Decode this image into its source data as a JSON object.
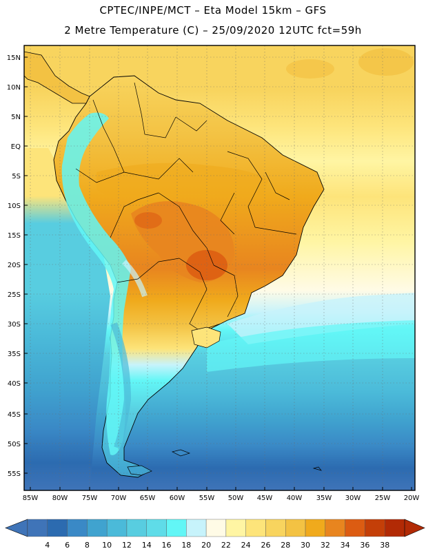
{
  "header": {
    "line1": "CPTEC/INPE/MCT –  Eta Model 15km – GFS",
    "line2": "2 Metre Temperature (C) – 25/09/2020 12UTC fct=59h"
  },
  "axes": {
    "lat_labels": [
      "15N",
      "10N",
      "5N",
      "EQ",
      "5S",
      "10S",
      "15S",
      "20S",
      "25S",
      "30S",
      "35S",
      "40S",
      "45S",
      "50S",
      "55S"
    ],
    "lon_labels": [
      "85W",
      "80W",
      "75W",
      "70W",
      "65W",
      "60W",
      "55W",
      "50W",
      "45W",
      "40W",
      "35W",
      "30W",
      "25W",
      "20W"
    ]
  },
  "colorbar": {
    "values": [
      "4",
      "6",
      "8",
      "10",
      "12",
      "14",
      "16",
      "18",
      "20",
      "22",
      "24",
      "26",
      "28",
      "30",
      "32",
      "34",
      "36",
      "38"
    ],
    "colors": [
      "#3f74b8",
      "#2c6bb0",
      "#3a89c6",
      "#40a3cf",
      "#4bbad9",
      "#58cde0",
      "#5fdce8",
      "#62f6f6",
      "#c7f3fb",
      "#fffbe6",
      "#fff5a3",
      "#fde47a",
      "#f8d45e",
      "#f3c243",
      "#f0aa1c",
      "#e8851f",
      "#dc5c12",
      "#c43f08",
      "#b22a05"
    ],
    "left_arrow_color": "#3f74b8",
    "right_arrow_color": "#b22a05"
  }
}
